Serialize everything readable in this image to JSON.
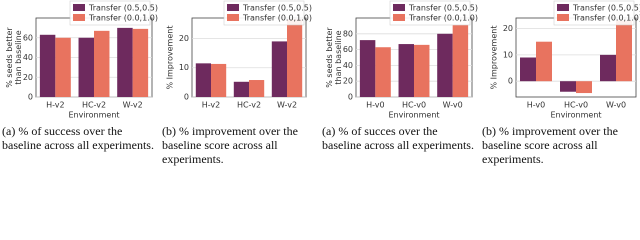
{
  "chart_data": [
    {
      "type": "bar",
      "y_label": [
        "% seeds better",
        "than baseline"
      ],
      "x_label": "Environment",
      "categories": [
        "H-v2",
        "HC-v2",
        "W-v2"
      ],
      "series": [
        {
          "name": "Transfer (0.5,0.5)",
          "color": "#6e2a5e",
          "values": [
            63,
            60,
            70
          ]
        },
        {
          "name": "Transfer (0.0,1.0)",
          "color": "#e8735f",
          "values": [
            60,
            67,
            69
          ]
        }
      ],
      "ylim": [
        0,
        80
      ],
      "yticks": [
        0,
        20,
        40,
        60
      ],
      "grid": true
    },
    {
      "type": "bar",
      "y_label": [
        "% Improvement"
      ],
      "categories": [
        "H-v2",
        "HC-v2",
        "W-v2"
      ],
      "series": [
        {
          "name": "Transfer (0.5,0.5)",
          "color": "#6e2a5e",
          "values": [
            11.5,
            5.2,
            19
          ]
        },
        {
          "name": "Transfer (0.0,1.0)",
          "color": "#e8735f",
          "values": [
            11.3,
            5.8,
            26.5
          ]
        }
      ],
      "ylim": [
        0,
        27
      ],
      "yticks": [
        0,
        10,
        20
      ],
      "grid": true
    },
    {
      "type": "bar",
      "y_label": [
        "% seeds better",
        "than baseline"
      ],
      "x_label": "Environment",
      "categories": [
        "H-v0",
        "HC-v0",
        "W-v0"
      ],
      "series": [
        {
          "name": "Transfer (0.5,0.5)",
          "color": "#6e2a5e",
          "values": [
            72,
            67,
            80
          ]
        },
        {
          "name": "Transfer (0.0,1.0)",
          "color": "#e8735f",
          "values": [
            63,
            66,
            91
          ]
        }
      ],
      "ylim": [
        0,
        100
      ],
      "yticks": [
        0,
        20,
        40,
        60,
        80
      ],
      "grid": true
    },
    {
      "type": "bar",
      "y_label": [
        "% Improvement"
      ],
      "x_label": "Environment",
      "categories": [
        "H-v0",
        "HC-v0",
        "W-v0"
      ],
      "series": [
        {
          "name": "Transfer (0.5,0.5)",
          "color": "#6e2a5e",
          "values": [
            9,
            -4,
            10
          ]
        },
        {
          "name": "Transfer (0.0,1.0)",
          "color": "#e8735f",
          "values": [
            15,
            -4.5,
            23
          ]
        }
      ],
      "ylim": [
        -6,
        24
      ],
      "yticks": [
        0,
        10,
        20
      ],
      "grid": true
    }
  ],
  "captions": [
    "(a) % of success over the baseline across all experiments.",
    "(b) % improvement over the baseline score across all experiments.",
    "(a) % of succes over the baseline across all experiments.",
    "(b) % improvement over the baseline score across all experiments."
  ]
}
